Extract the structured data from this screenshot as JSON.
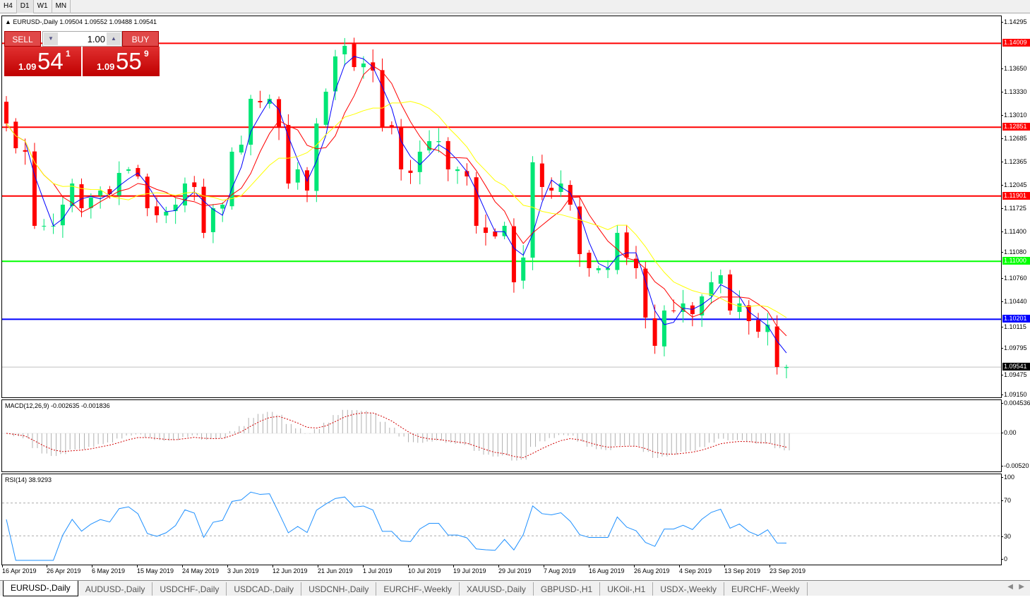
{
  "timeframes": [
    "H4",
    "D1",
    "W1",
    "MN"
  ],
  "active_timeframe": "D1",
  "main": {
    "title": "EURUSD-,Daily  1.09504 1.09552 1.09488 1.09541"
  },
  "trade": {
    "sell": "SELL",
    "buy": "BUY",
    "lot": "1.00",
    "sell_small": "1.09",
    "sell_big": "54",
    "sell_sup": "1",
    "buy_small": "1.09",
    "buy_big": "55",
    "buy_sup": "9"
  },
  "price_ticks": [
    "1.14295",
    "1.13650",
    "1.13330",
    "1.13010",
    "1.12685",
    "1.12365",
    "1.12045",
    "1.11725",
    "1.11400",
    "1.11080",
    "1.10760",
    "1.10440",
    "1.10115",
    "1.09795",
    "1.09475",
    "1.09150"
  ],
  "levels": [
    {
      "price": "1.14009",
      "color": "#ff0000"
    },
    {
      "price": "1.12851",
      "color": "#ff0000"
    },
    {
      "price": "1.11901",
      "color": "#ff0000"
    },
    {
      "price": "1.11000",
      "color": "#00ff00"
    },
    {
      "price": "1.10201",
      "color": "#0000ff"
    },
    {
      "price": "1.09541",
      "color": "#000000"
    }
  ],
  "macd": {
    "title": "MACD(12,26,9) -0.002635 -0.001836",
    "ticks": [
      "0.004536",
      "0.00",
      "-0.00520"
    ]
  },
  "rsi": {
    "title": "RSI(14) 38.9293",
    "ticks": [
      "100",
      "70",
      "30",
      "0"
    ]
  },
  "dates": [
    "16 Apr 2019",
    "26 Apr 2019",
    "6 May 2019",
    "15 May 2019",
    "24 May 2019",
    "3 Jun 2019",
    "12 Jun 2019",
    "21 Jun 2019",
    "1 Jul 2019",
    "10 Jul 2019",
    "19 Jul 2019",
    "29 Jul 2019",
    "7 Aug 2019",
    "16 Aug 2019",
    "26 Aug 2019",
    "4 Sep 2019",
    "13 Sep 2019",
    "23 Sep 2019"
  ],
  "tabs": [
    "EURUSD-,Daily",
    "AUDUSD-,Daily",
    "USDCHF-,Daily",
    "USDCAD-,Daily",
    "USDCNH-,Daily",
    "EURCHF-,Weekly",
    "XAUUSD-,Daily",
    "GBPUSD-,H1",
    "UKOil-,H1",
    "USDX-,Weekly",
    "EURCHF-,Weekly"
  ],
  "active_tab": "EURUSD-,Daily",
  "chart_data": {
    "type": "candlestick",
    "symbol": "EURUSD",
    "timeframe": "Daily",
    "ylim": [
      1.0915,
      1.14295
    ],
    "closes": [
      1.12902,
      1.12561,
      1.12513,
      1.1149,
      1.1149,
      1.1149,
      1.11782,
      1.12074,
      1.11733,
      1.1188,
      1.11977,
      1.11928,
      1.1222,
      1.12269,
      1.12172,
      1.11733,
      1.11636,
      1.11685,
      1.11782,
      1.12074,
      1.12026,
      1.11393,
      1.11733,
      1.11782,
      1.12513,
      1.1261,
      1.13243,
      1.13194,
      1.13243,
      1.12853,
      1.12074,
      1.12269,
      1.11977,
      1.12902,
      1.13341,
      1.13828,
      1.13974,
      1.13681,
      1.1373,
      1.13633,
      1.12853,
      1.12853,
      1.12269,
      1.1222,
      1.12513,
      1.12659,
      1.12659,
      1.12269,
      1.12269,
      1.12172,
      1.1149,
      1.11393,
      1.11344,
      1.1149,
      1.10711,
      1.11052,
      1.12367,
      1.12026,
      1.11977,
      1.12074,
      1.11782,
      1.111,
      1.10906,
      1.10906,
      1.10906,
      1.11393,
      1.11052,
      1.10906,
      1.10224,
      1.09834,
      1.10321,
      1.10321,
      1.10419,
      1.10272,
      1.10516,
      1.10711,
      1.10808,
      1.10321,
      1.10419,
      1.10175,
      1.10029,
      1.10126,
      1.09542,
      1.09541
    ],
    "indicators": {
      "ma_colors": [
        "#0000ff",
        "#ff0000",
        "#ffff00"
      ],
      "up_color": "#00e676",
      "down_color": "#ff0000"
    }
  }
}
